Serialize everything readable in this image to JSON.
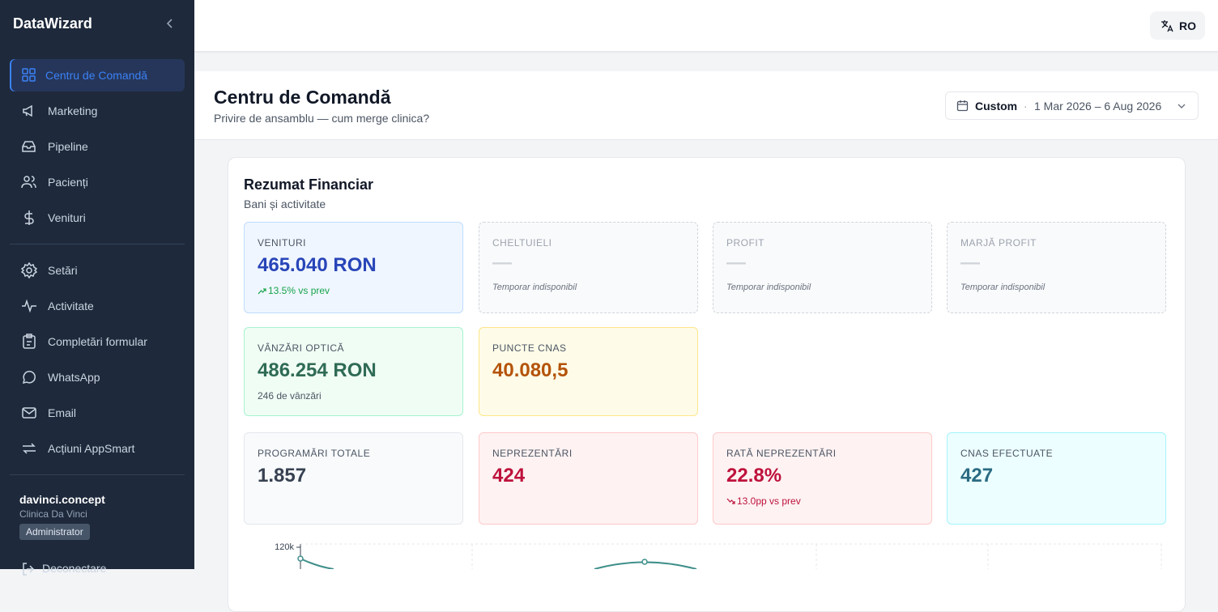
{
  "sidebar": {
    "brand": "DataWizard",
    "nav": [
      "Centru de Comandă",
      "Marketing",
      "Pipeline",
      "Pacienți",
      "Venituri"
    ],
    "nav_secondary": [
      "Setări",
      "Activitate",
      "Completări formular",
      "WhatsApp",
      "Email",
      "Acțiuni AppSmart"
    ],
    "user": {
      "name": "davinci.concept",
      "clinic": "Clinica Da Vinci",
      "role": "Administrator"
    },
    "logout": "Deconectare"
  },
  "topbar": {
    "language": "RO"
  },
  "header": {
    "title": "Centru de Comandă",
    "subtitle": "Privire de ansamblu — cum merge clinica?",
    "date_range": {
      "preset": "Custom",
      "separator": "·",
      "range": "1 Mar 2026 – 6 Aug 2026"
    }
  },
  "summary": {
    "title": "Rezumat Financiar",
    "subtitle": "Bani și activitate",
    "kpis": [
      {
        "label": "VENITURI",
        "value": "465.040 RON",
        "note": "13.5% vs prev"
      },
      {
        "label": "CHELTUIELI",
        "value": "—",
        "note": "Temporar indisponibil"
      },
      {
        "label": "PROFIT",
        "value": "—",
        "note": "Temporar indisponibil"
      },
      {
        "label": "MARJĂ PROFIT",
        "value": "—",
        "note": "Temporar indisponibil"
      },
      {
        "label": "VÂNZĂRI OPTICĂ",
        "value": "486.254 RON",
        "note": "246 de vânzări"
      },
      {
        "label": "PUNCTE CNAS",
        "value": "40.080,5"
      },
      {
        "label": "PROGRAMĂRI TOTALE",
        "value": "1.857"
      },
      {
        "label": "NEPREZENTĂRI",
        "value": "424"
      },
      {
        "label": "RATĂ NEPREZENTĂRI",
        "value": "22.8%",
        "note": "13.0pp vs prev"
      },
      {
        "label": "CNAS EFECTUATE",
        "value": "427"
      }
    ]
  },
  "chart": {
    "y_tick": "120k"
  }
}
